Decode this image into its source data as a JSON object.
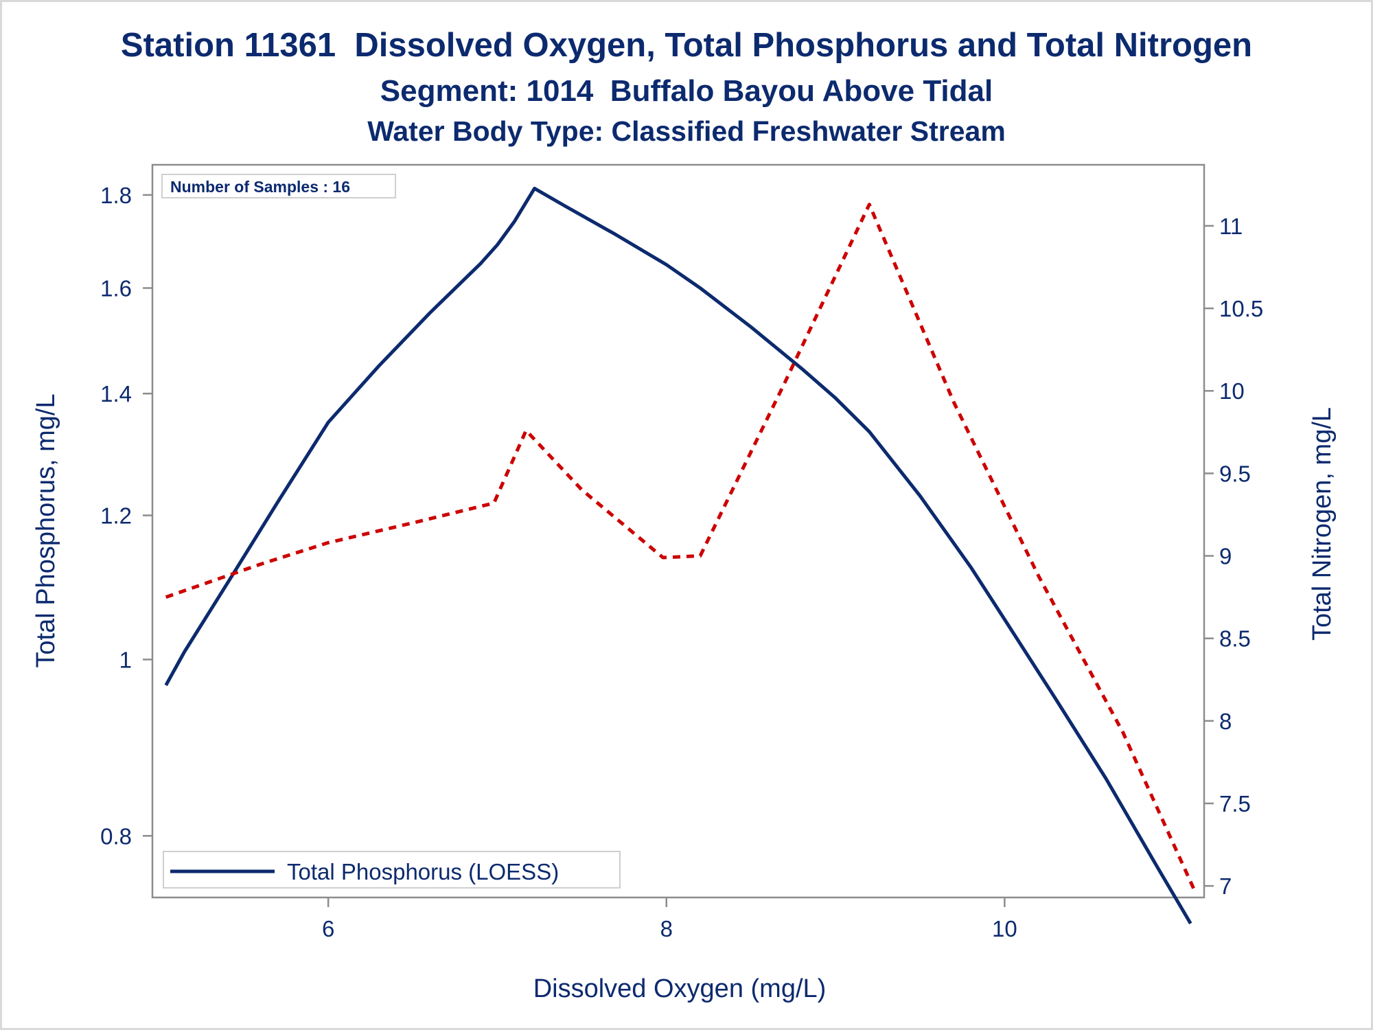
{
  "titles": {
    "line1": "Station 11361  Dissolved Oxygen, Total Phosphorus and Total Nitrogen",
    "line2": "Segment: 1014  Buffalo Bayou Above Tidal",
    "line3": "Water Body Type: Classified Freshwater Stream"
  },
  "inset": {
    "label": "Number of Samples : 16"
  },
  "legend": {
    "items": [
      {
        "label": "Total Phosphorus (LOESS)",
        "color": "#0c2a6e",
        "style": "solid"
      }
    ],
    "placement": "bottom-left"
  },
  "colors": {
    "text": "#0c2a6e",
    "phosphorus_line": "#0c2a6e",
    "nitrogen_line": "#cc0000",
    "axis": "#8c8c8c"
  },
  "chart_data": {
    "type": "line",
    "xlabel": "Dissolved Oxygen (mg/L)",
    "ylabel": "Total Phosphorus, mg/L",
    "y2label": "Total Nitrogen, mg/L",
    "xlim": [
      4.96,
      11.18
    ],
    "ylim": [
      0.74,
      1.87
    ],
    "y_scale": "log",
    "y2lim": [
      6.93,
      11.37
    ],
    "x_ticks": [
      6,
      8,
      10
    ],
    "y_ticks": [
      0.8,
      1,
      1.2,
      1.4,
      1.6,
      1.8
    ],
    "y_tick_labels": [
      "0.8",
      "1",
      "1.2",
      "1.4",
      "1.6",
      "1.8"
    ],
    "y2_ticks": [
      7,
      7.5,
      8,
      8.5,
      9,
      9.5,
      10,
      10.5,
      11
    ],
    "y2_tick_labels": [
      "7",
      "7.5",
      "8",
      "8.5",
      "9",
      "9.5",
      "10",
      "10.5",
      "11"
    ],
    "grid": false,
    "series": [
      {
        "name": "Total Phosphorus (LOESS)",
        "axis": "left",
        "style": "solid",
        "x": [
          5.04,
          5.15,
          5.4,
          5.7,
          6.0,
          6.3,
          6.6,
          6.9,
          7.0,
          7.1,
          7.22,
          7.4,
          7.7,
          8.0,
          8.2,
          8.5,
          8.8,
          9.0,
          9.2,
          9.5,
          9.8,
          10.0,
          10.3,
          10.6,
          10.9,
          11.1
        ],
        "y": [
          0.968,
          1.01,
          1.1,
          1.22,
          1.35,
          1.45,
          1.55,
          1.65,
          1.69,
          1.74,
          1.815,
          1.775,
          1.712,
          1.648,
          1.6,
          1.523,
          1.445,
          1.392,
          1.334,
          1.23,
          1.124,
          1.052,
          0.952,
          0.86,
          0.77,
          0.716
        ]
      },
      {
        "name": "Total Nitrogen",
        "axis": "right",
        "style": "dashed",
        "x": [
          5.04,
          5.6,
          6.0,
          6.5,
          6.98,
          7.17,
          7.5,
          7.98,
          8.2,
          8.7,
          9.2,
          9.7,
          10.2,
          10.7,
          11.12
        ],
        "y": [
          8.75,
          8.95,
          9.08,
          9.2,
          9.32,
          9.76,
          9.4,
          8.99,
          9.0,
          10.05,
          11.13,
          9.93,
          8.88,
          7.93,
          6.98
        ]
      }
    ]
  }
}
